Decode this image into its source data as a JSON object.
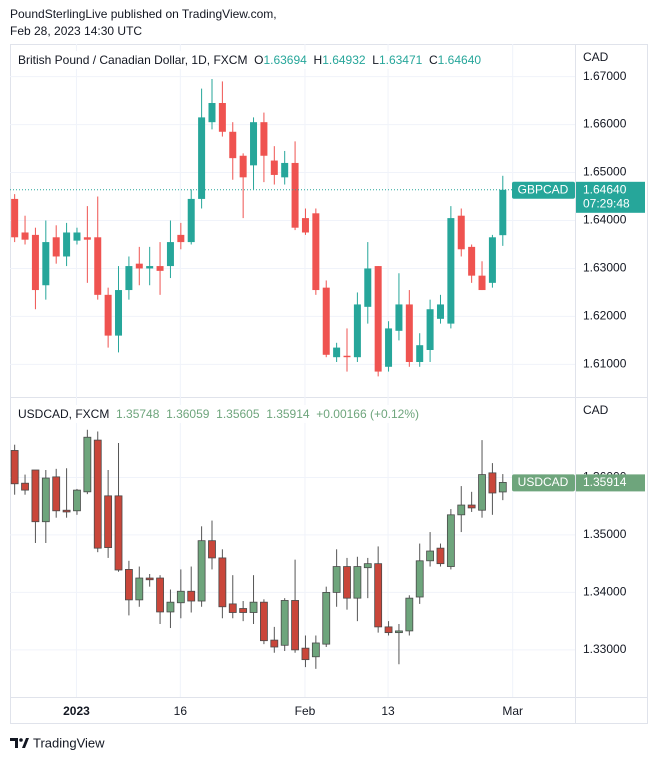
{
  "header": {
    "line1": "PoundSterlingLive published on TradingView.com,",
    "line2": "Feb 28, 2023 14:30 UTC"
  },
  "x_axis": {
    "xlim": [
      -0.4,
      54
    ],
    "xticks": [
      {
        "value": 6,
        "label": "2023"
      },
      {
        "value": 16,
        "label": "16"
      },
      {
        "value": 28,
        "label": "Feb"
      },
      {
        "value": 36,
        "label": "13"
      },
      {
        "value": 48,
        "label": "Mar"
      }
    ]
  },
  "chart_data": [
    {
      "type": "candlestick",
      "title": "British Pound / Canadian Dollar, 1D, FXCM",
      "symbol": "GBPCAD",
      "currency": "CAD",
      "ohlc_keys": [
        "O",
        "H",
        "L",
        "C"
      ],
      "ohlc_labels": [
        "1.63694",
        "1.64932",
        "1.63471",
        "1.64640"
      ],
      "last_label": "1.64640",
      "countdown": "07:29:48",
      "up_color": "#26a69a",
      "down_color": "#ef5350",
      "border": false,
      "ylim": [
        1.6032,
        1.6768
      ],
      "yticks": [
        {
          "value": 1.61,
          "label": "1.61000"
        },
        {
          "value": 1.62,
          "label": "1.62000"
        },
        {
          "value": 1.63,
          "label": "1.63000"
        },
        {
          "value": 1.64,
          "label": "1.64000"
        },
        {
          "value": 1.65,
          "label": "1.65000"
        },
        {
          "value": 1.66,
          "label": "1.66000"
        },
        {
          "value": 1.67,
          "label": "1.67000"
        }
      ],
      "open": [
        1.6445,
        1.6375,
        1.637,
        1.6265,
        1.6365,
        1.6325,
        1.6358,
        1.6365,
        1.6365,
        1.6245,
        1.616,
        1.6255,
        1.631,
        1.63,
        1.6305,
        1.6305,
        1.637,
        1.6355,
        1.6445,
        1.6605,
        1.6645,
        1.6585,
        1.6535,
        1.6515,
        1.6605,
        1.6525,
        1.649,
        1.652,
        1.6405,
        1.6415,
        1.626,
        1.6115,
        1.6118,
        1.6115,
        1.622,
        1.6305,
        1.6095,
        1.617,
        1.6225,
        1.6105,
        1.613,
        1.6195,
        1.6185,
        1.641,
        1.6345,
        1.6285,
        1.627,
        1.63694
      ],
      "high": [
        1.6455,
        1.641,
        1.6385,
        1.64,
        1.639,
        1.6395,
        1.6385,
        1.643,
        1.645,
        1.626,
        1.6305,
        1.6325,
        1.6345,
        1.6345,
        1.6355,
        1.64,
        1.6395,
        1.6465,
        1.6675,
        1.6695,
        1.669,
        1.6605,
        1.654,
        1.6615,
        1.6625,
        1.6555,
        1.6545,
        1.6565,
        1.6425,
        1.6425,
        1.6275,
        1.6145,
        1.6175,
        1.625,
        1.6355,
        1.6305,
        1.619,
        1.629,
        1.6255,
        1.6165,
        1.6235,
        1.6245,
        1.643,
        1.6425,
        1.635,
        1.6315,
        1.637,
        1.64932
      ],
      "low": [
        1.6355,
        1.635,
        1.6215,
        1.6235,
        1.631,
        1.6305,
        1.635,
        1.627,
        1.6235,
        1.6135,
        1.6125,
        1.6235,
        1.6265,
        1.6265,
        1.6245,
        1.628,
        1.634,
        1.635,
        1.6425,
        1.659,
        1.6575,
        1.6485,
        1.6405,
        1.6465,
        1.648,
        1.6475,
        1.6475,
        1.638,
        1.637,
        1.6245,
        1.6115,
        1.6105,
        1.6085,
        1.6105,
        1.6185,
        1.6075,
        1.6085,
        1.615,
        1.6095,
        1.6095,
        1.6105,
        1.6185,
        1.6175,
        1.6325,
        1.627,
        1.6255,
        1.626,
        1.63471
      ],
      "close": [
        1.6365,
        1.636,
        1.6255,
        1.6355,
        1.6325,
        1.6375,
        1.6375,
        1.636,
        1.6245,
        1.616,
        1.6255,
        1.6305,
        1.63,
        1.6305,
        1.6295,
        1.6355,
        1.6355,
        1.6445,
        1.6615,
        1.6645,
        1.6585,
        1.653,
        1.649,
        1.6605,
        1.6535,
        1.6495,
        1.652,
        1.6385,
        1.6375,
        1.6255,
        1.612,
        1.6135,
        1.6115,
        1.6225,
        1.63,
        1.6085,
        1.6175,
        1.6225,
        1.6105,
        1.614,
        1.6215,
        1.6225,
        1.6405,
        1.634,
        1.6285,
        1.6255,
        1.6365,
        1.6464
      ]
    },
    {
      "type": "candlestick",
      "title": "USDCAD, FXCM",
      "symbol": "USDCAD",
      "currency": "CAD",
      "ohlc_labels": [
        "1.35748",
        "1.36059",
        "1.35605",
        "1.35914"
      ],
      "change_label": "+0.00166 (+0.12%)",
      "last_label": "1.35914",
      "up_color": "#6ea57c",
      "down_color": "#c9463a",
      "border": true,
      "ylim": [
        1.3218,
        1.374
      ],
      "yticks": [
        {
          "value": 1.33,
          "label": "1.33000"
        },
        {
          "value": 1.34,
          "label": "1.34000"
        },
        {
          "value": 1.35,
          "label": "1.35000"
        },
        {
          "value": 1.36,
          "label": "1.36000"
        }
      ],
      "open": [
        1.3647,
        1.359,
        1.3613,
        1.3523,
        1.3601,
        1.3543,
        1.3542,
        1.3575,
        1.3665,
        1.3568,
        1.3568,
        1.344,
        1.3387,
        1.3425,
        1.3425,
        1.3366,
        1.3382,
        1.3402,
        1.3385,
        1.349,
        1.346,
        1.338,
        1.3372,
        1.3365,
        1.3383,
        1.3317,
        1.3308,
        1.3386,
        1.3303,
        1.3288,
        1.331,
        1.34,
        1.3445,
        1.339,
        1.3443,
        1.345,
        1.334,
        1.333,
        1.3333,
        1.3392,
        1.3455,
        1.3477,
        1.3445,
        1.3535,
        1.3552,
        1.3543,
        1.3608,
        1.35748
      ],
      "high": [
        1.3657,
        1.3605,
        1.3613,
        1.3613,
        1.3615,
        1.3616,
        1.358,
        1.3683,
        1.368,
        1.3613,
        1.366,
        1.3455,
        1.3445,
        1.3432,
        1.343,
        1.3405,
        1.344,
        1.3445,
        1.3515,
        1.3525,
        1.3475,
        1.343,
        1.3385,
        1.343,
        1.3388,
        1.334,
        1.339,
        1.3457,
        1.3325,
        1.3325,
        1.341,
        1.3475,
        1.346,
        1.3462,
        1.346,
        1.348,
        1.335,
        1.3345,
        1.3395,
        1.3485,
        1.3505,
        1.3485,
        1.3545,
        1.3585,
        1.3575,
        1.3665,
        1.3625,
        1.36059
      ],
      "low": [
        1.357,
        1.357,
        1.3486,
        1.3486,
        1.353,
        1.353,
        1.3535,
        1.3571,
        1.347,
        1.346,
        1.3436,
        1.336,
        1.3375,
        1.341,
        1.3345,
        1.3338,
        1.3355,
        1.3365,
        1.3375,
        1.344,
        1.3355,
        1.3355,
        1.335,
        1.3345,
        1.331,
        1.3295,
        1.3298,
        1.3295,
        1.327,
        1.3267,
        1.3305,
        1.3375,
        1.337,
        1.335,
        1.339,
        1.333,
        1.3325,
        1.3275,
        1.3325,
        1.338,
        1.3445,
        1.3445,
        1.344,
        1.3505,
        1.354,
        1.353,
        1.3535,
        1.35605
      ],
      "close": [
        1.3589,
        1.3578,
        1.3523,
        1.3599,
        1.3542,
        1.354,
        1.3578,
        1.367,
        1.3477,
        1.3478,
        1.3439,
        1.3387,
        1.3425,
        1.3422,
        1.3366,
        1.3383,
        1.3402,
        1.3385,
        1.349,
        1.346,
        1.3375,
        1.3365,
        1.3365,
        1.3383,
        1.3316,
        1.3305,
        1.3386,
        1.33,
        1.3283,
        1.3312,
        1.34,
        1.3445,
        1.339,
        1.3445,
        1.345,
        1.334,
        1.333,
        1.3333,
        1.339,
        1.3455,
        1.3472,
        1.345,
        1.3535,
        1.3552,
        1.3547,
        1.3605,
        1.3573,
        1.35914
      ]
    }
  ],
  "footer": "TradingView"
}
